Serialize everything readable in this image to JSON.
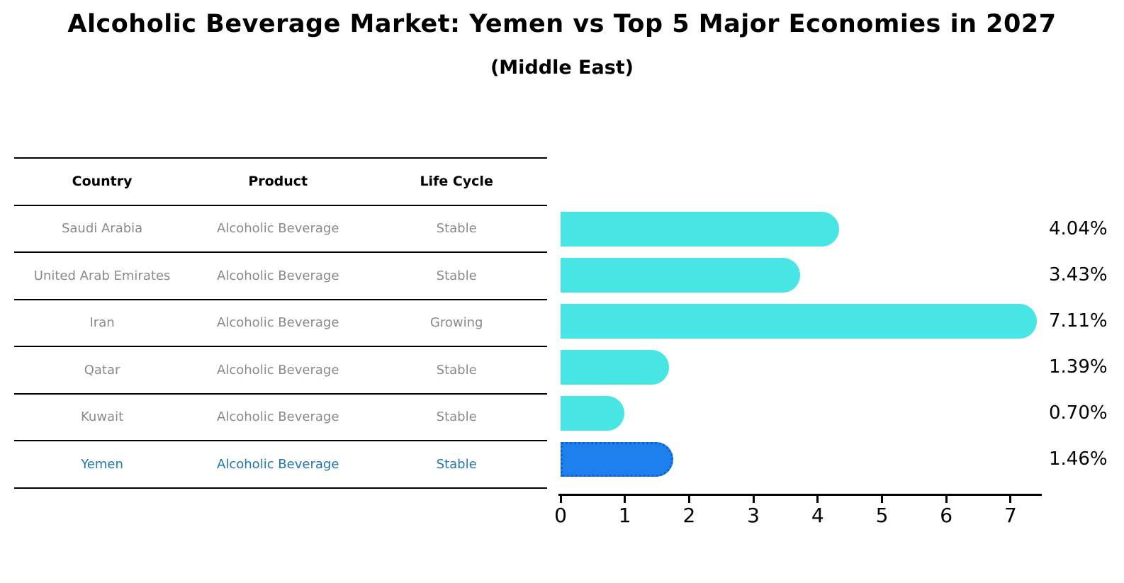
{
  "title": "Alcoholic Beverage Market: Yemen vs Top 5 Major Economies in 2027",
  "subtitle": "(Middle East)",
  "table": {
    "headers": [
      "Country",
      "Product",
      "Life Cycle"
    ],
    "rows": [
      [
        "Saudi Arabia",
        "Alcoholic Beverage",
        "Stable"
      ],
      [
        "United Arab Emirates",
        "Alcoholic Beverage",
        "Stable"
      ],
      [
        "Iran",
        "Alcoholic Beverage",
        "Growing"
      ],
      [
        "Qatar",
        "Alcoholic Beverage",
        "Stable"
      ],
      [
        "Kuwait",
        "Alcoholic Beverage",
        "Stable"
      ],
      [
        "Yemen",
        "Alcoholic Beverage",
        "Stable"
      ]
    ],
    "highlight_row": 5,
    "body_text_color": "#8a8a8a",
    "highlight_text_color": "#1f77b4"
  },
  "chart_data": {
    "type": "bar",
    "orientation": "horizontal",
    "title": "Alcoholic Beverage Market: Yemen vs Top 5 Major Economies in 2027",
    "subtitle": "(Middle East)",
    "categories": [
      "Saudi Arabia",
      "United Arab Emirates",
      "Iran",
      "Qatar",
      "Kuwait",
      "Yemen"
    ],
    "values": [
      4.04,
      3.43,
      7.11,
      1.39,
      0.7,
      1.46
    ],
    "value_labels": [
      "4.04%",
      "3.43%",
      "7.11%",
      "1.39%",
      "0.70%",
      "1.46%"
    ],
    "xlabel": "",
    "ylabel": "",
    "xlim": [
      0,
      7.45
    ],
    "x_ticks": [
      "0",
      "1",
      "2",
      "3",
      "4",
      "5",
      "6",
      "7"
    ],
    "grid": false,
    "legend": false,
    "highlight_index": 5,
    "bar_color": "#48E5E5",
    "highlight_bar_color": "#1E80EC",
    "highlight_bar_edge_color": "#1060D0"
  }
}
